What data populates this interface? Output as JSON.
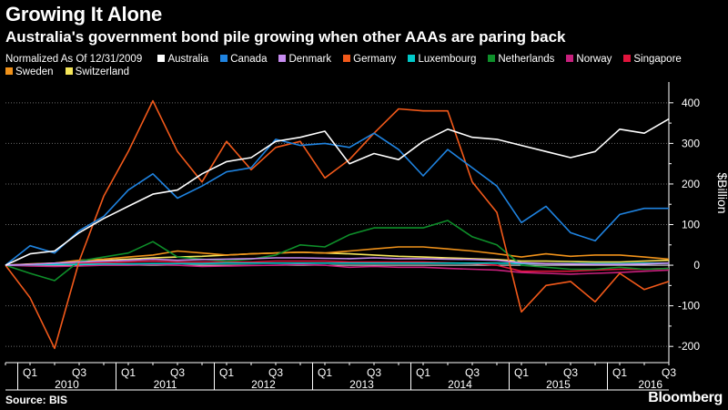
{
  "header": {
    "title": "Growing It Alone",
    "subtitle": "Australia's government bond pile growing when other AAAs are paring back"
  },
  "legend_note": "Normalized As Of 12/31/2009",
  "footer": {
    "source": "Source: BIS",
    "brand": "Bloomberg"
  },
  "chart_data": {
    "type": "line",
    "title": "Growing It Alone",
    "subtitle": "Australia's government bond pile growing when other AAAs are paring back",
    "ylabel": "$Billion",
    "ylim": [
      -240,
      440
    ],
    "yticks": [
      400,
      300,
      200,
      100,
      0,
      -100,
      -200
    ],
    "ytick_labels": [
      "400",
      "300",
      "200",
      "100",
      "0",
      "-100",
      "-200"
    ],
    "x_quarter_labels": [
      "Q1",
      "Q3",
      "Q1",
      "Q3",
      "Q1",
      "Q3",
      "Q1",
      "Q3",
      "Q1",
      "Q3",
      "Q1",
      "Q3",
      "Q1",
      "Q3"
    ],
    "x_year_labels": [
      "2010",
      "2011",
      "2012",
      "2013",
      "2014",
      "2015",
      "2016"
    ],
    "x": [
      "2009-Q4",
      "2010-Q1",
      "2010-Q2",
      "2010-Q3",
      "2010-Q4",
      "2011-Q1",
      "2011-Q2",
      "2011-Q3",
      "2011-Q4",
      "2012-Q1",
      "2012-Q2",
      "2012-Q3",
      "2012-Q4",
      "2013-Q1",
      "2013-Q2",
      "2013-Q3",
      "2013-Q4",
      "2014-Q1",
      "2014-Q2",
      "2014-Q3",
      "2014-Q4",
      "2015-Q1",
      "2015-Q2",
      "2015-Q3",
      "2015-Q4",
      "2016-Q1",
      "2016-Q2",
      "2016-Q3"
    ],
    "grid": true,
    "legend_position": "top",
    "zero_line": true,
    "series": [
      {
        "name": "Australia",
        "color": "#ffffff",
        "values": [
          0,
          28,
          35,
          80,
          115,
          145,
          175,
          185,
          225,
          255,
          265,
          305,
          315,
          330,
          250,
          275,
          260,
          305,
          335,
          315,
          310,
          295,
          280,
          265,
          280,
          335,
          325,
          360
        ]
      },
      {
        "name": "Canada",
        "color": "#1f83e0",
        "values": [
          0,
          48,
          30,
          85,
          120,
          185,
          225,
          165,
          195,
          230,
          240,
          310,
          295,
          300,
          290,
          325,
          285,
          220,
          285,
          240,
          195,
          105,
          145,
          80,
          60,
          125,
          140,
          140
        ]
      },
      {
        "name": "Denmark",
        "color": "#c78cf0",
        "values": [
          0,
          2,
          5,
          8,
          10,
          12,
          15,
          12,
          14,
          15,
          16,
          18,
          18,
          17,
          16,
          18,
          16,
          16,
          15,
          14,
          12,
          6,
          4,
          3,
          2,
          2,
          3,
          5
        ]
      },
      {
        "name": "Germany",
        "color": "#f2591a",
        "values": [
          0,
          -80,
          -205,
          10,
          170,
          280,
          405,
          280,
          205,
          305,
          235,
          290,
          305,
          215,
          260,
          325,
          385,
          380,
          380,
          205,
          130,
          -115,
          -50,
          -40,
          -90,
          -20,
          -60,
          -40
        ]
      },
      {
        "name": "Luxembourg",
        "color": "#00c8c8",
        "values": [
          0,
          1,
          2,
          2,
          3,
          3,
          4,
          4,
          4,
          5,
          5,
          5,
          5,
          5,
          5,
          5,
          5,
          5,
          5,
          5,
          5,
          4,
          4,
          4,
          4,
          4,
          5,
          5
        ]
      },
      {
        "name": "Netherlands",
        "color": "#0e8f2a",
        "values": [
          0,
          -20,
          -38,
          10,
          20,
          30,
          58,
          20,
          15,
          10,
          15,
          25,
          50,
          45,
          75,
          92,
          92,
          92,
          110,
          70,
          50,
          0,
          -5,
          -10,
          -10,
          -5,
          -10,
          -8
        ]
      },
      {
        "name": "Norway",
        "color": "#c8207d",
        "values": [
          0,
          -2,
          -3,
          -2,
          0,
          0,
          2,
          0,
          -3,
          -2,
          -1,
          0,
          2,
          0,
          -5,
          -3,
          -5,
          -5,
          -8,
          -10,
          -12,
          -18,
          -20,
          -22,
          -20,
          -18,
          -15,
          -12
        ]
      },
      {
        "name": "Singapore",
        "color": "#e0143c",
        "values": [
          0,
          2,
          3,
          5,
          6,
          8,
          10,
          8,
          8,
          8,
          8,
          10,
          10,
          10,
          8,
          8,
          8,
          8,
          6,
          4,
          0,
          -15,
          -15,
          -15,
          -12,
          -10,
          -10,
          -8
        ]
      },
      {
        "name": "Sweden",
        "color": "#f0921a",
        "values": [
          0,
          2,
          5,
          12,
          15,
          20,
          25,
          35,
          30,
          25,
          28,
          30,
          32,
          30,
          35,
          40,
          45,
          45,
          40,
          35,
          28,
          20,
          28,
          22,
          25,
          25,
          20,
          15
        ]
      },
      {
        "name": "Switzerland",
        "color": "#f5e65a",
        "values": [
          0,
          3,
          5,
          8,
          12,
          15,
          18,
          20,
          22,
          25,
          28,
          30,
          32,
          30,
          28,
          25,
          22,
          20,
          18,
          16,
          14,
          10,
          10,
          9,
          8,
          8,
          10,
          12
        ]
      }
    ]
  }
}
